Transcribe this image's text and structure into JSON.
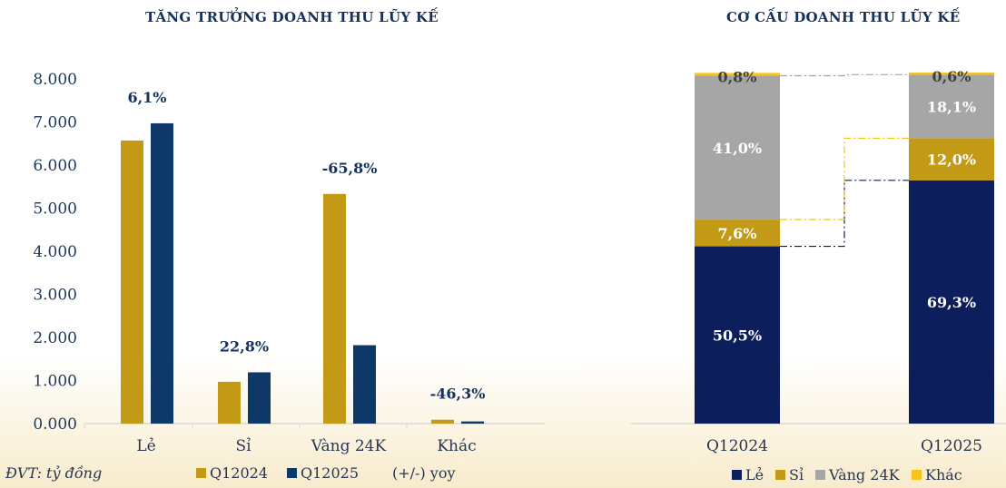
{
  "chart_data": [
    {
      "type": "bar",
      "title": "TĂNG TRƯỞNG DOANH THU LŨY KẾ",
      "unit_note": "ĐVT: tỷ đồng",
      "categories": [
        "Lẻ",
        "Sỉ",
        "Vàng 24K",
        "Khác"
      ],
      "yticks": [
        "0.000",
        "1.000",
        "2.000",
        "3.000",
        "4.000",
        "5.000",
        "6.000",
        "7.000",
        "8.000"
      ],
      "ylim": [
        0,
        8000
      ],
      "series": [
        {
          "name": "Q12024",
          "color": "#c39a16",
          "values": [
            6570,
            970,
            5330,
            90
          ]
        },
        {
          "name": "Q12025",
          "color": "#0e3867",
          "values": [
            6970,
            1190,
            1820,
            50
          ]
        }
      ],
      "yoy_label": "(+/-) yoy",
      "yoy": [
        "6,1%",
        "22,8%",
        "-65,8%",
        "-46,3%"
      ]
    },
    {
      "type": "bar",
      "stacked": true,
      "title": "CƠ CẤU DOANH THU LŨY KẾ",
      "categories": [
        "Q12024",
        "Q12025"
      ],
      "series": [
        {
          "name": "Lẻ",
          "color": "#0c1f5c",
          "values": [
            50.5,
            69.3
          ],
          "labels": [
            "50,5%",
            "69,3%"
          ]
        },
        {
          "name": "Sỉ",
          "color": "#c39a16",
          "values": [
            7.6,
            12.0
          ],
          "labels": [
            "7,6%",
            "12,0%"
          ]
        },
        {
          "name": "Vàng 24K",
          "color": "#a6a6a6",
          "values": [
            41.0,
            18.1
          ],
          "labels": [
            "41,0%",
            "18,1%"
          ]
        },
        {
          "name": "Khác",
          "color": "#f5c518",
          "values": [
            0.8,
            0.6
          ],
          "labels": [
            "0,8%",
            "0,6%"
          ]
        }
      ]
    }
  ]
}
